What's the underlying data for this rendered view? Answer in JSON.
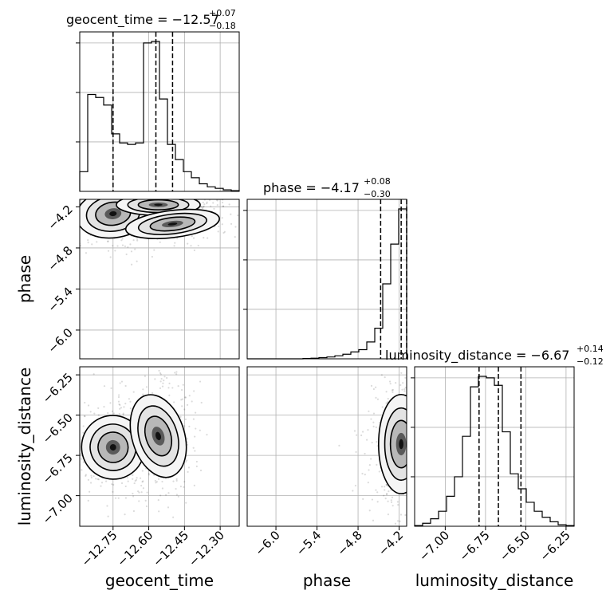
{
  "figure_text": {
    "titles": [
      {
        "param": "geocent_time",
        "label": "geocent_time = −12.57",
        "plus": "+0.07",
        "minus": "−0.18"
      },
      {
        "param": "phase",
        "label": "phase = −4.17",
        "plus": "+0.08",
        "minus": "−0.30"
      },
      {
        "param": "luminosity_distance",
        "label": "luminosity_distance = −6.67",
        "plus": "+0.14",
        "minus": "−0.12"
      }
    ],
    "xlabels": [
      "geocent_time",
      "phase",
      "luminosity_distance"
    ],
    "ylabels": [
      "phase",
      "luminosity_distance"
    ]
  },
  "chart_data": {
    "type": "corner",
    "grid": true,
    "parameters": [
      {
        "name": "geocent_time",
        "range": [
          -12.89,
          -12.22
        ],
        "ticks": [
          -12.75,
          -12.6,
          -12.45,
          -12.3
        ],
        "tick_labels": [
          "−12.75",
          "−12.60",
          "−12.45",
          "−12.30"
        ],
        "median": -12.57,
        "q16": -12.75,
        "q84": -12.5
      },
      {
        "name": "phase",
        "range": [
          -6.42,
          -4.09
        ],
        "ticks": [
          -6.0,
          -5.4,
          -4.8,
          -4.2
        ],
        "tick_labels": [
          "−6.0",
          "−5.4",
          "−4.8",
          "−4.2"
        ],
        "median": -4.17,
        "q16": -4.47,
        "q84": -4.09
      },
      {
        "name": "luminosity_distance",
        "range": [
          -7.19,
          -6.2
        ],
        "ticks": [
          -7.0,
          -6.75,
          -6.5,
          -6.25
        ],
        "tick_labels": [
          "−7.00",
          "−6.75",
          "−6.50",
          "−6.25"
        ],
        "median": -6.67,
        "q16": -6.79,
        "q84": -6.53
      }
    ],
    "histograms": [
      {
        "param": "geocent_time",
        "bin_edges": [
          -12.89,
          -12.8565,
          -12.823,
          -12.7895,
          -12.756,
          -12.7225,
          -12.689,
          -12.6555,
          -12.622,
          -12.5885,
          -12.555,
          -12.5215,
          -12.488,
          -12.4545,
          -12.421,
          -12.3875,
          -12.354,
          -12.3205,
          -12.287,
          -12.2535,
          -12.22
        ],
        "counts": [
          0.13,
          0.64,
          0.62,
          0.57,
          0.38,
          0.32,
          0.31,
          0.32,
          0.98,
          0.99,
          0.61,
          0.31,
          0.21,
          0.13,
          0.09,
          0.05,
          0.03,
          0.02,
          0.01,
          0.005
        ]
      },
      {
        "param": "phase",
        "bin_edges": [
          -6.42,
          -6.3035,
          -6.187,
          -6.0705,
          -5.954,
          -5.8375,
          -5.721,
          -5.6045,
          -5.488,
          -5.3715,
          -5.255,
          -5.1385,
          -5.022,
          -4.9055,
          -4.789,
          -4.6725,
          -4.556,
          -4.4395,
          -4.323,
          -4.2065,
          -4.09
        ],
        "counts": [
          0,
          0,
          0,
          0,
          0,
          0,
          0,
          0.002,
          0.004,
          0.008,
          0.012,
          0.02,
          0.03,
          0.045,
          0.06,
          0.11,
          0.2,
          0.49,
          0.75,
          0.98
        ]
      },
      {
        "param": "luminosity_distance",
        "bin_edges": [
          -7.19,
          -7.1405,
          -7.091,
          -7.0415,
          -6.992,
          -6.9425,
          -6.893,
          -6.8435,
          -6.794,
          -6.7445,
          -6.695,
          -6.6455,
          -6.596,
          -6.5465,
          -6.497,
          -6.4475,
          -6.398,
          -6.3485,
          -6.299,
          -6.2495,
          -6.2
        ],
        "counts": [
          0.005,
          0.02,
          0.05,
          0.1,
          0.2,
          0.33,
          0.6,
          0.93,
          1.0,
          0.99,
          0.94,
          0.63,
          0.35,
          0.25,
          0.16,
          0.1,
          0.06,
          0.03,
          0.01,
          0.005
        ]
      }
    ],
    "contour_panels": [
      {
        "x": "geocent_time",
        "y": "phase",
        "blobs": [
          {
            "x": -12.75,
            "y": -4.3,
            "sx": 0.07,
            "sy": 0.16,
            "rot": 0.2,
            "w": 0.55
          },
          {
            "x": -12.56,
            "y": -4.17,
            "sx": 0.08,
            "sy": 0.07,
            "rot": 0,
            "w": 0.85
          },
          {
            "x": -12.5,
            "y": -4.45,
            "sx": 0.09,
            "sy": 0.09,
            "rot": 0.2,
            "w": 0.3
          }
        ]
      },
      {
        "x": "geocent_time",
        "y": "luminosity_distance",
        "blobs": [
          {
            "x": -12.75,
            "y": -6.7,
            "sx": 0.06,
            "sy": 0.09,
            "rot": 0.6,
            "w": 0.85
          },
          {
            "x": -12.56,
            "y": -6.63,
            "sx": 0.05,
            "sy": 0.12,
            "rot": 0.5,
            "w": 0.9
          }
        ]
      },
      {
        "x": "phase",
        "y": "luminosity_distance",
        "blobs": [
          {
            "x": -4.17,
            "y": -6.68,
            "sx": 0.15,
            "sy": 0.14,
            "rot": 0,
            "w": 0.95
          }
        ]
      }
    ]
  }
}
